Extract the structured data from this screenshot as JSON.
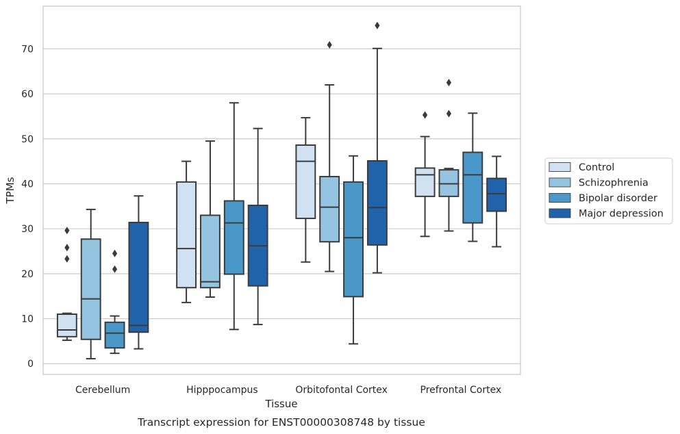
{
  "chart_data": {
    "type": "box",
    "caption": "Transcript expression for ENST00000308748 by tissue",
    "xlabel": "Tissue",
    "ylabel": "TPMs",
    "ylim": [
      -2.4,
      79.5
    ],
    "yticks": [
      0,
      10,
      20,
      30,
      40,
      50,
      60,
      70
    ],
    "grid": true,
    "legend_position": "center-right",
    "categories": [
      "Cerebellum",
      "Hipppocampus",
      "Orbitofontal Cortex",
      "Prefrontal Cortex"
    ],
    "series": [
      {
        "name": "Control",
        "color": "#d0e1f2",
        "boxes": [
          {
            "whislo": 5.2,
            "q1": 6.0,
            "med": 7.5,
            "q3": 11.0,
            "whishi": 11.2,
            "fliers": [
              23.3,
              25.8,
              29.6
            ]
          },
          {
            "whislo": 13.6,
            "q1": 16.9,
            "med": 25.6,
            "q3": 40.4,
            "whishi": 45.0,
            "fliers": []
          },
          {
            "whislo": 22.6,
            "q1": 32.3,
            "med": 45.0,
            "q3": 48.6,
            "whishi": 54.7,
            "fliers": []
          },
          {
            "whislo": 28.3,
            "q1": 37.2,
            "med": 42.0,
            "q3": 43.5,
            "whishi": 50.5,
            "fliers": [
              55.3
            ]
          }
        ]
      },
      {
        "name": "Schizophrenia",
        "color": "#94c4df",
        "boxes": [
          {
            "whislo": 1.1,
            "q1": 5.4,
            "med": 14.4,
            "q3": 27.7,
            "whishi": 34.3,
            "fliers": []
          },
          {
            "whislo": 14.8,
            "q1": 16.9,
            "med": 18.2,
            "q3": 33.0,
            "whishi": 49.5,
            "fliers": []
          },
          {
            "whislo": 20.5,
            "q1": 27.1,
            "med": 34.8,
            "q3": 41.6,
            "whishi": 62.0,
            "fliers": [
              70.9
            ]
          },
          {
            "whislo": 29.5,
            "q1": 37.2,
            "med": 40.0,
            "q3": 43.1,
            "whishi": 43.4,
            "fliers": [
              55.6,
              62.5
            ]
          }
        ]
      },
      {
        "name": "Bipolar disorder",
        "color": "#4a98c9",
        "boxes": [
          {
            "whislo": 2.3,
            "q1": 3.5,
            "med": 6.8,
            "q3": 9.2,
            "whishi": 10.6,
            "fliers": [
              21.0,
              24.5
            ]
          },
          {
            "whislo": 7.6,
            "q1": 19.9,
            "med": 31.3,
            "q3": 36.2,
            "whishi": 58.0,
            "fliers": []
          },
          {
            "whislo": 4.4,
            "q1": 14.9,
            "med": 28.0,
            "q3": 40.4,
            "whishi": 46.2,
            "fliers": []
          },
          {
            "whislo": 27.2,
            "q1": 31.3,
            "med": 42.0,
            "q3": 47.0,
            "whishi": 55.7,
            "fliers": []
          }
        ]
      },
      {
        "name": "Major depression",
        "color": "#2163aa",
        "boxes": [
          {
            "whislo": 3.3,
            "q1": 7.0,
            "med": 8.5,
            "q3": 31.4,
            "whishi": 37.3,
            "fliers": []
          },
          {
            "whislo": 8.7,
            "q1": 17.3,
            "med": 26.2,
            "q3": 35.2,
            "whishi": 52.3,
            "fliers": []
          },
          {
            "whislo": 20.2,
            "q1": 26.4,
            "med": 34.7,
            "q3": 45.1,
            "whishi": 70.1,
            "fliers": [
              75.2
            ]
          },
          {
            "whislo": 26.0,
            "q1": 33.9,
            "med": 37.8,
            "q3": 41.2,
            "whishi": 46.1,
            "fliers": []
          }
        ]
      }
    ]
  }
}
